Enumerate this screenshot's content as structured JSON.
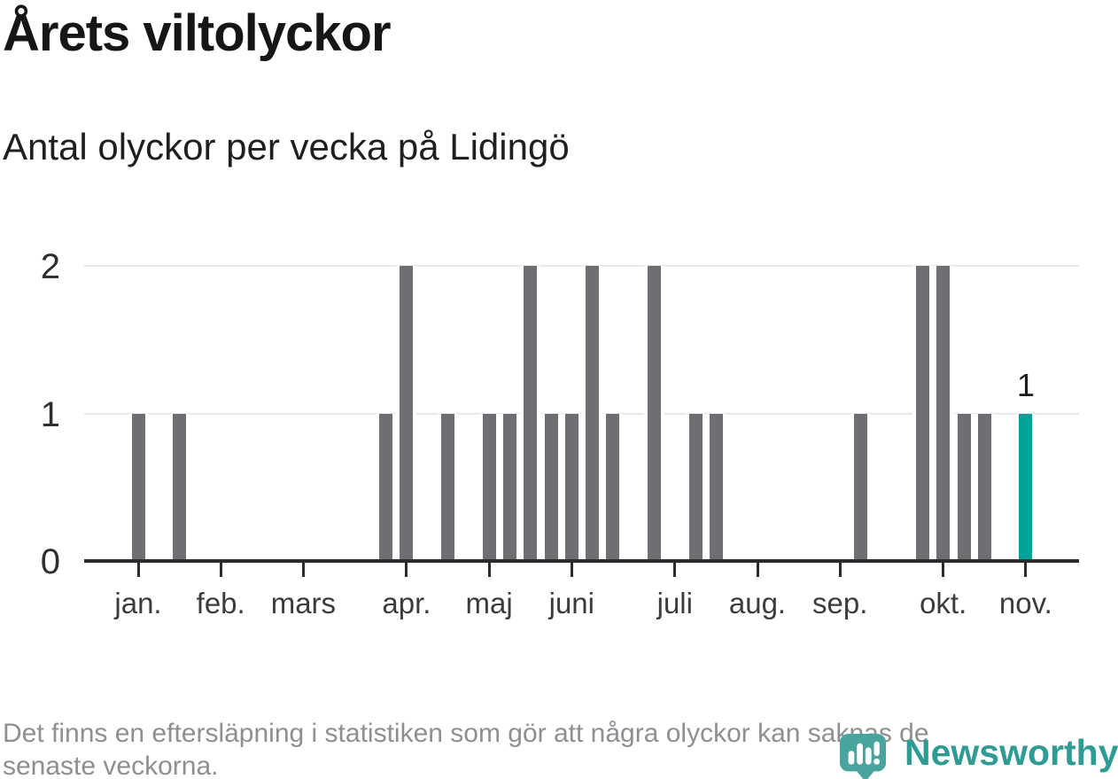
{
  "header": {
    "title": "Årets viltolyckor",
    "subtitle": "Antal olyckor per vecka på Lidingö"
  },
  "chart_data": {
    "type": "bar",
    "title": "Årets viltolyckor",
    "subtitle": "Antal olyckor per vecka på Lidingö",
    "x_unit": "vecka",
    "categories_note": "48 consecutive weeks, January through November",
    "values": [
      1,
      0,
      1,
      0,
      0,
      0,
      0,
      0,
      0,
      0,
      0,
      0,
      1,
      2,
      0,
      1,
      0,
      1,
      1,
      2,
      1,
      1,
      2,
      1,
      0,
      2,
      0,
      1,
      1,
      0,
      0,
      0,
      0,
      0,
      0,
      1,
      0,
      0,
      2,
      2,
      1,
      1,
      0,
      1,
      0,
      0,
      0,
      0
    ],
    "month_ticks": [
      {
        "label": "jan.",
        "week": 1
      },
      {
        "label": "feb.",
        "week": 5
      },
      {
        "label": "mars",
        "week": 9
      },
      {
        "label": "apr.",
        "week": 14
      },
      {
        "label": "maj",
        "week": 18
      },
      {
        "label": "juni",
        "week": 22
      },
      {
        "label": "juli",
        "week": 27
      },
      {
        "label": "aug.",
        "week": 31
      },
      {
        "label": "sep.",
        "week": 35
      },
      {
        "label": "okt.",
        "week": 40
      },
      {
        "label": "nov.",
        "week": 44
      }
    ],
    "yticks": [
      0,
      1,
      2
    ],
    "ylim": [
      0,
      2
    ],
    "grid": "horizontal",
    "bar_color": "#6e6e73",
    "highlight": {
      "week": 44,
      "value": 1,
      "label": "1",
      "color": "#00a19a"
    }
  },
  "footer": {
    "lines": [
      "Det finns en eftersläpning i statistiken som gör att några olyckor kan saknas de",
      "senaste veckorna."
    ]
  },
  "logo": {
    "text": "Newsworthy",
    "icon": "newsworthy-chart-bubble-icon",
    "text_color": "#2e9b94",
    "icon_color": "#48a49d"
  }
}
